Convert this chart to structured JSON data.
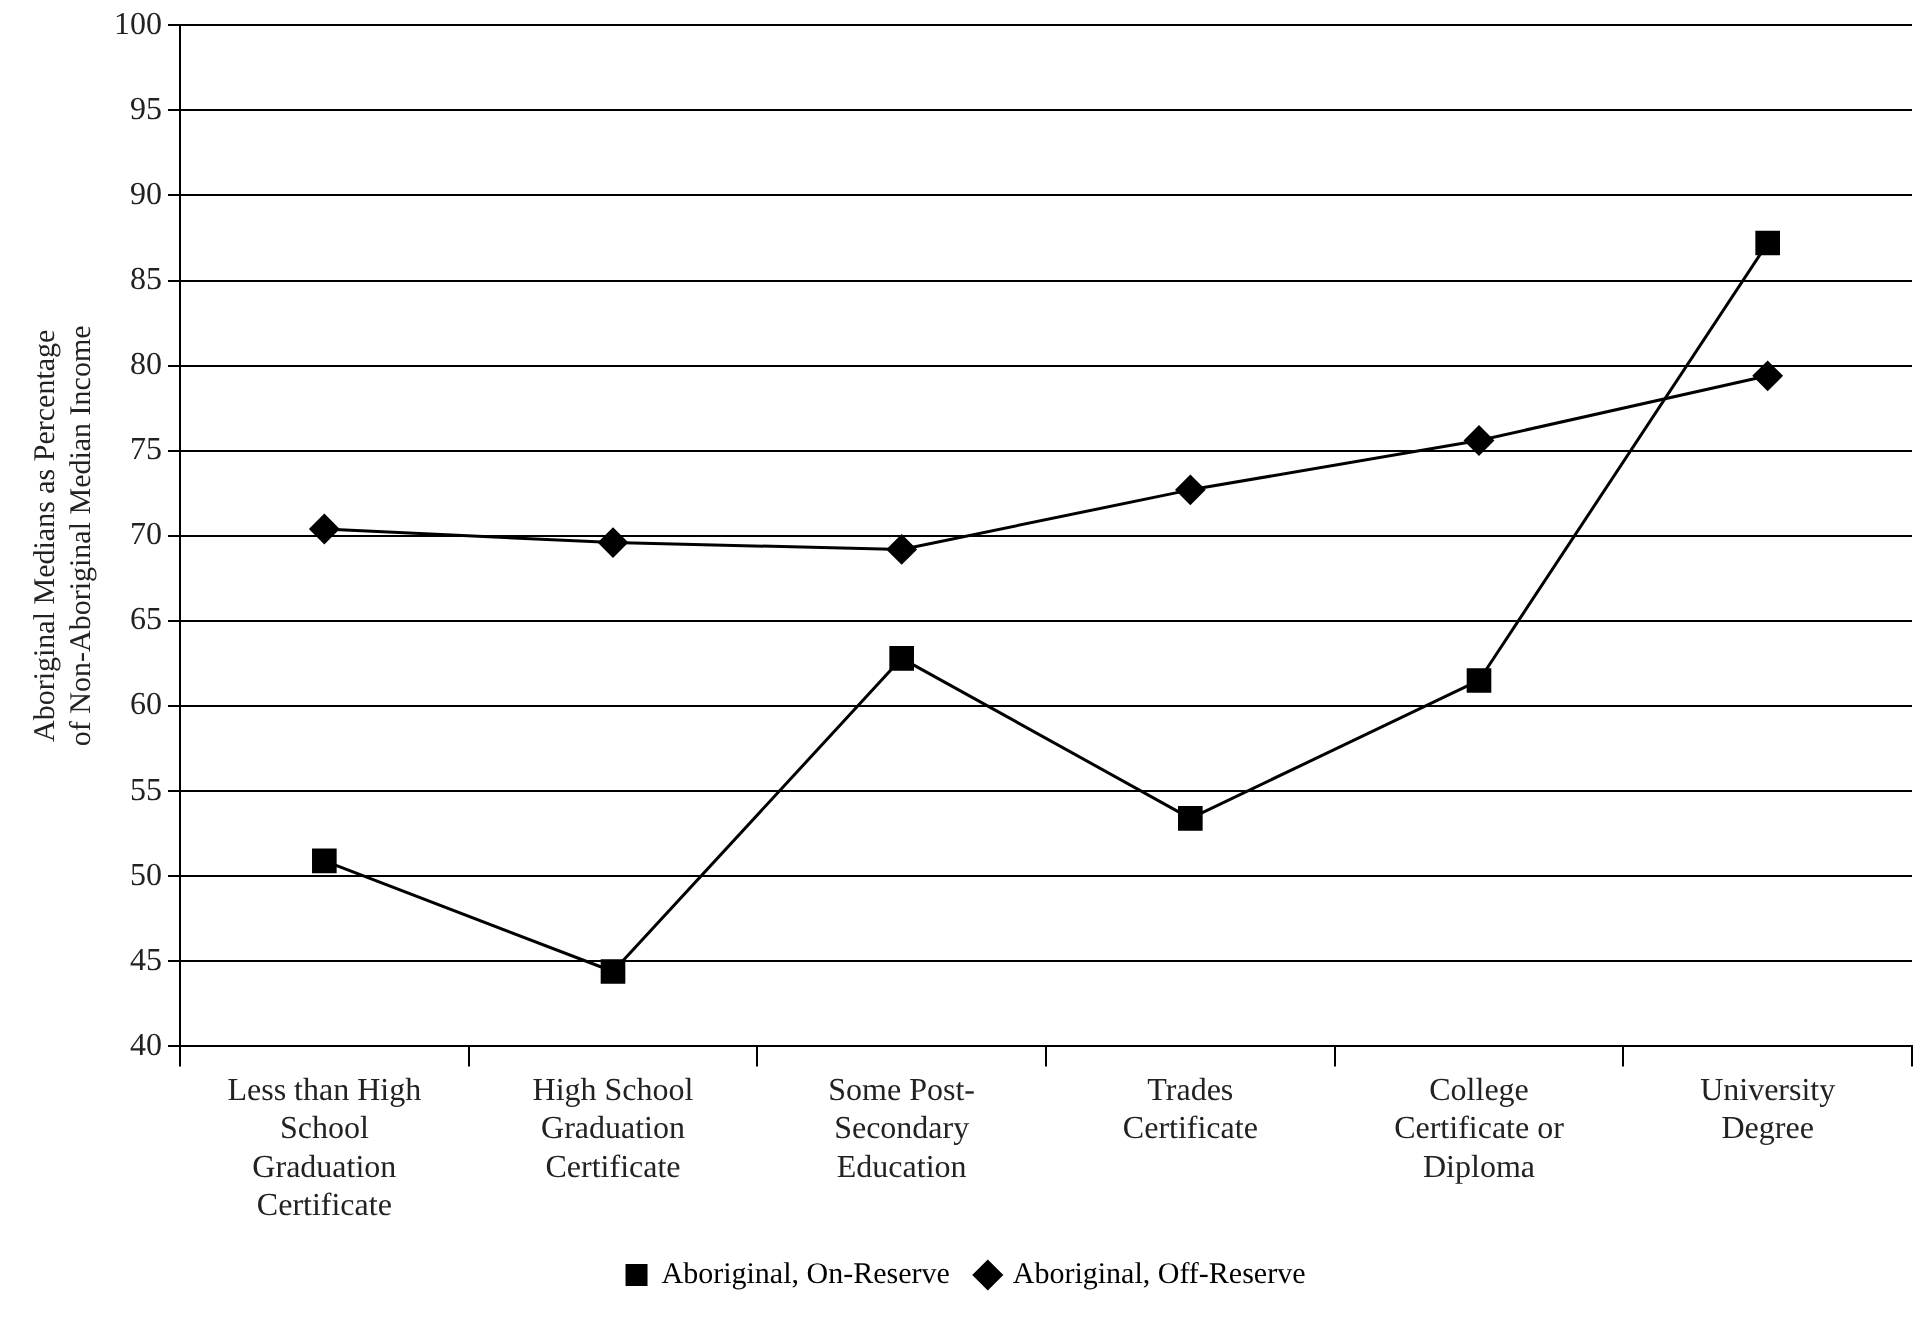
{
  "chart_data": {
    "type": "line",
    "ylabel": "Aboriginal Medians as Percentage of Non-Aboriginal Median Income",
    "categories": [
      "Less than High School Graduation Certificate",
      "High School Graduation Certificate",
      "Some Post-Secondary Education",
      "Trades Certificate",
      "College Certificate or Diploma",
      "University Degree"
    ],
    "series": [
      {
        "name": "Aboriginal, On-Reserve",
        "color": "#000000",
        "marker": "square",
        "values": [
          50.9,
          44.4,
          62.8,
          53.4,
          61.5,
          87.2
        ]
      },
      {
        "name": "Aboriginal, Off-Reserve",
        "color": "#000000",
        "marker": "diamond",
        "values": [
          70.4,
          69.6,
          69.2,
          72.7,
          75.6,
          79.4
        ]
      }
    ],
    "ylim": [
      40,
      100
    ],
    "yticks": [
      40,
      45,
      50,
      55,
      60,
      65,
      70,
      75,
      80,
      85,
      90,
      95,
      100
    ],
    "grid": "y",
    "legend": "bottom"
  }
}
